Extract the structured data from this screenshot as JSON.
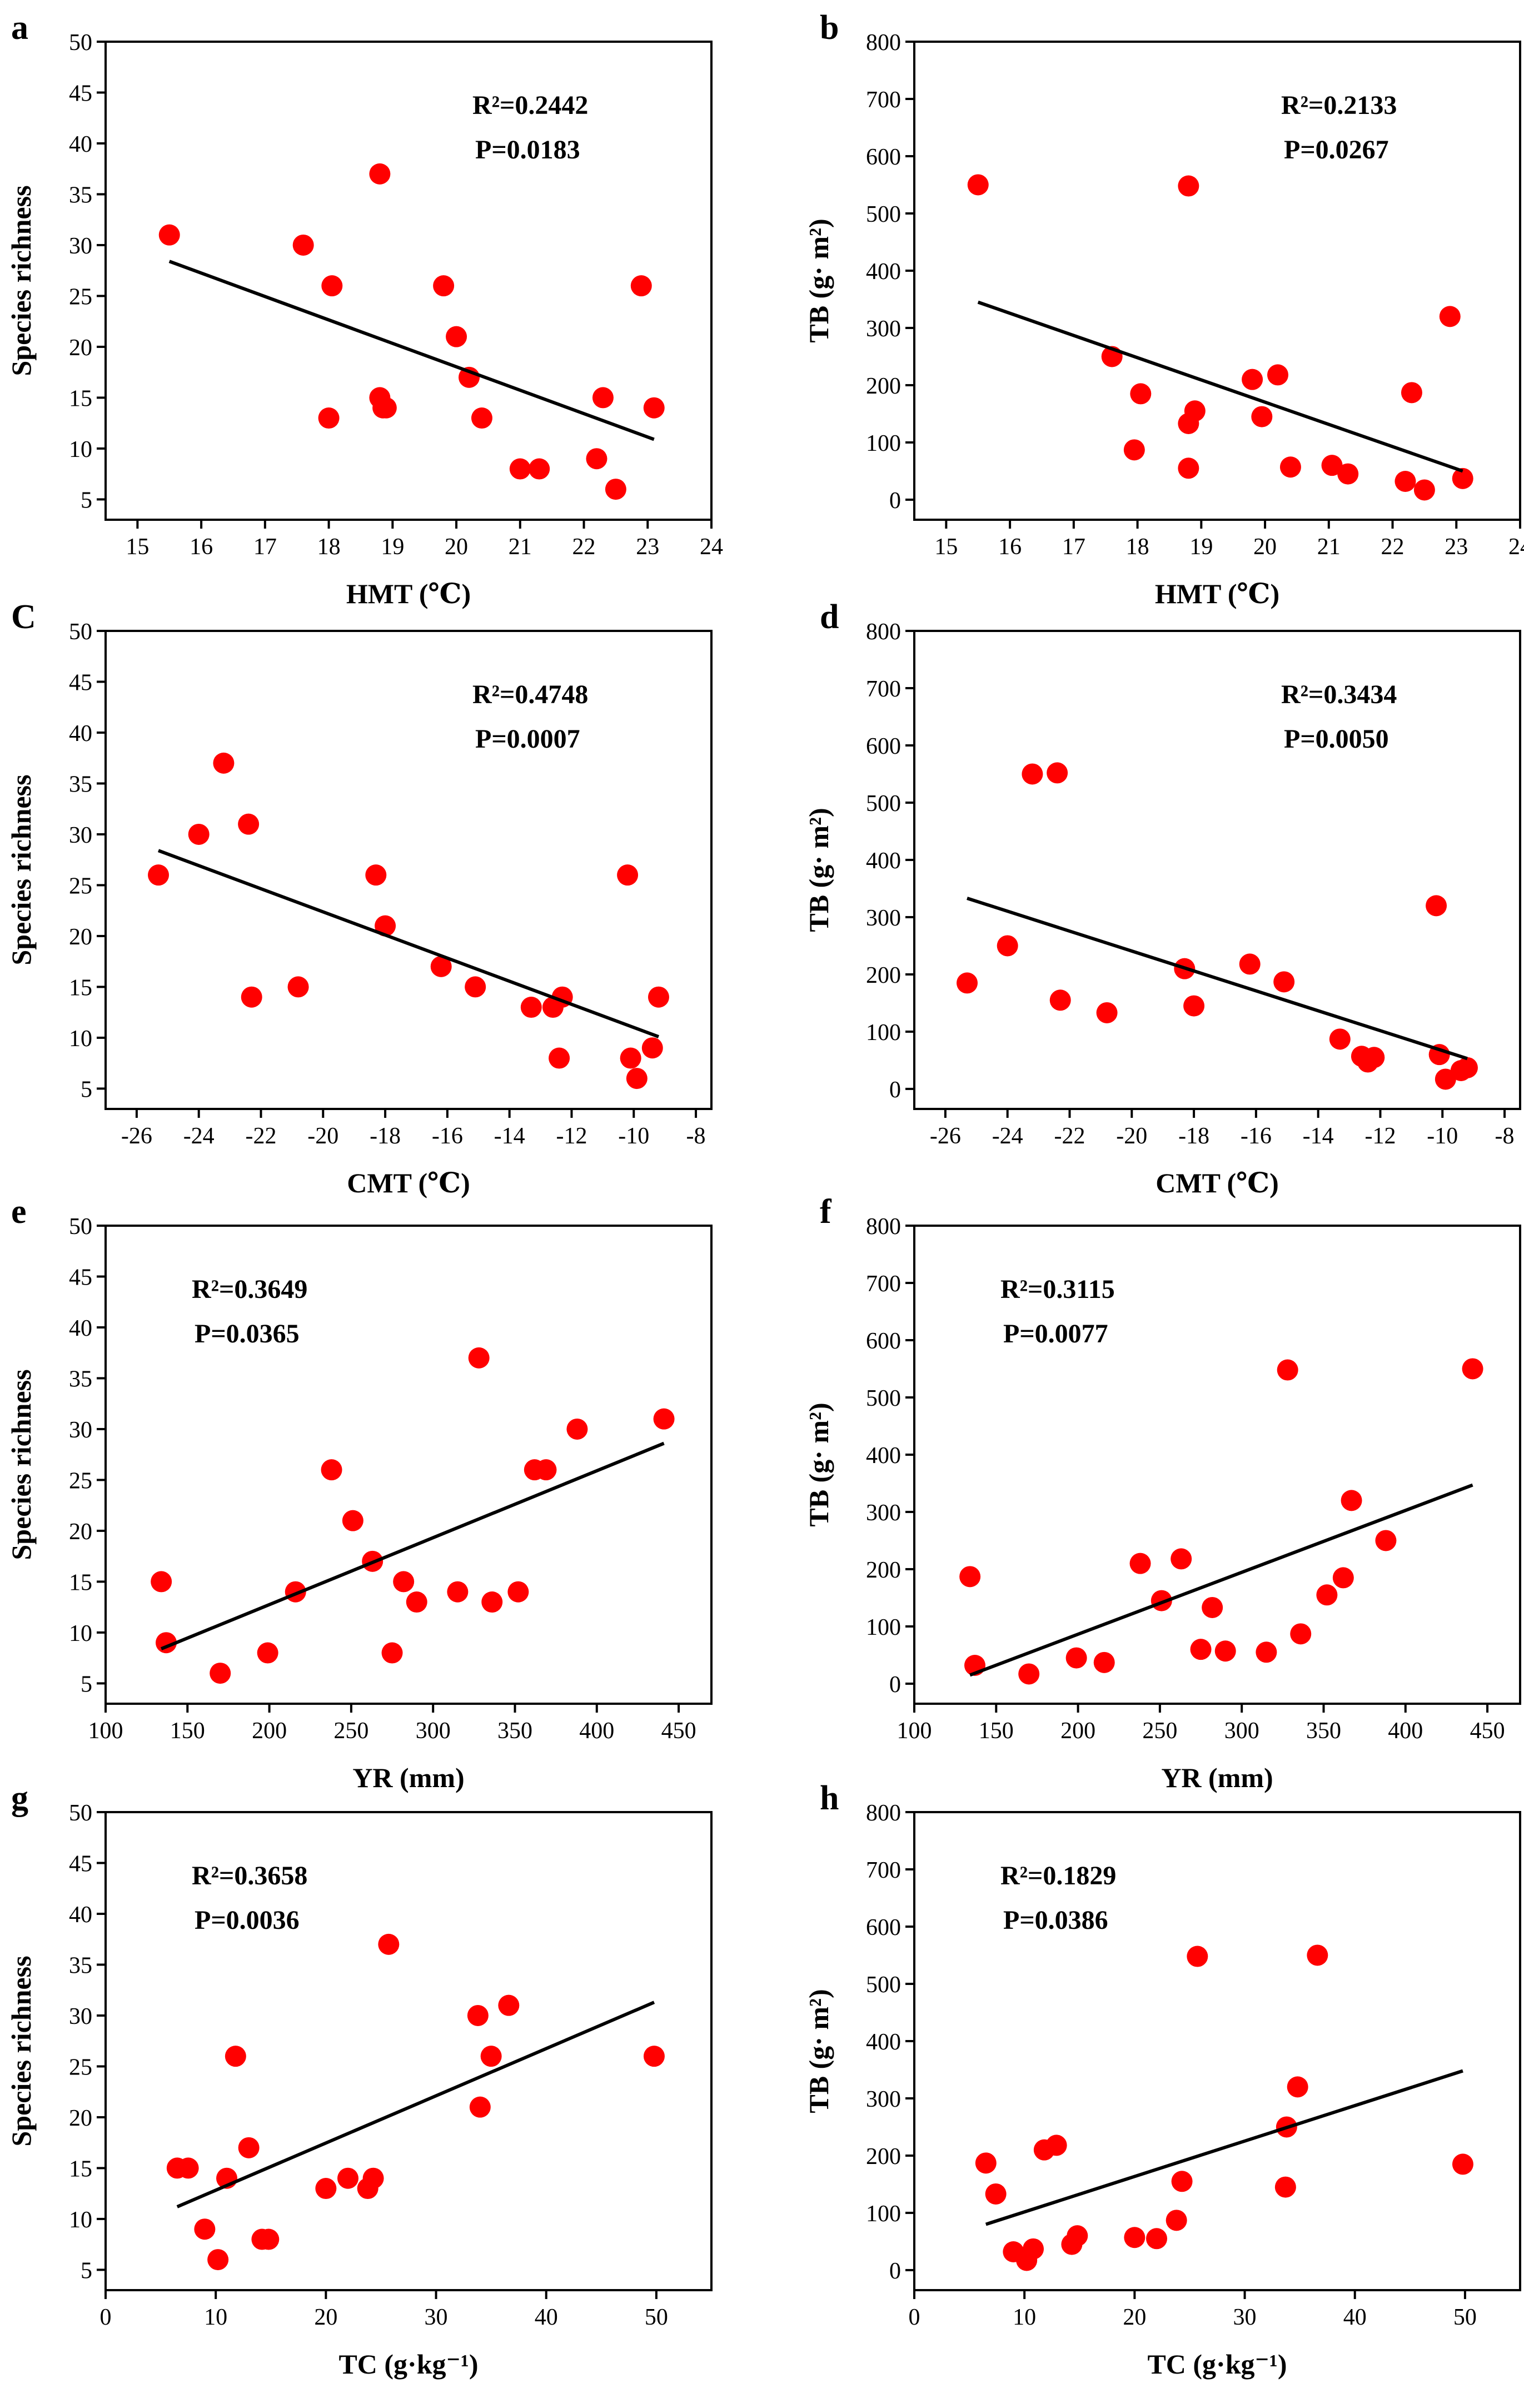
{
  "figure": {
    "point_color": "#ff0000",
    "line_color": "#000000"
  },
  "chart_data": [
    {
      "panel": "a",
      "type": "scatter",
      "xlabel": "HMT (℃)",
      "ylabel": "Species richness",
      "xlim": [
        14.5,
        24
      ],
      "ylim": [
        3,
        50
      ],
      "xticks": [
        15,
        16,
        17,
        18,
        19,
        20,
        21,
        22,
        23,
        24
      ],
      "yticks": [
        5,
        10,
        15,
        20,
        25,
        30,
        35,
        40,
        45,
        50
      ],
      "r2_label": "R²=0.2442",
      "p_label": "P=0.0183",
      "x": [
        15.5,
        17.6,
        18,
        18.05,
        18.8,
        18.8,
        18.85,
        18.9,
        19.8,
        20,
        20.2,
        20.4,
        21,
        21.3,
        22.2,
        22.3,
        22.5,
        22.9,
        23.1
      ],
      "y": [
        31,
        30,
        13,
        26,
        37,
        15,
        14,
        14,
        26,
        21,
        17,
        13,
        8,
        8,
        9,
        15,
        6,
        26,
        14
      ],
      "fit": {
        "x": [
          15.5,
          23.1
        ],
        "y": [
          28.4,
          10.9
        ]
      }
    },
    {
      "panel": "b",
      "type": "scatter",
      "xlabel": "HMT (℃)",
      "ylabel": "TB (g· m²)",
      "xlim": [
        14.5,
        24
      ],
      "ylim": [
        -35,
        800
      ],
      "xticks": [
        15,
        16,
        17,
        18,
        19,
        20,
        21,
        22,
        23,
        24
      ],
      "yticks": [
        0,
        100,
        200,
        300,
        400,
        500,
        600,
        700,
        800
      ],
      "r2_label": "R²=0.2133",
      "p_label": "P=0.0267",
      "x": [
        15.5,
        17.6,
        17.95,
        18.05,
        18.8,
        18.8,
        18.8,
        18.9,
        19.8,
        19.95,
        20.2,
        20.4,
        21.05,
        21.3,
        22.2,
        22.3,
        22.5,
        22.9,
        23.1
      ],
      "y": [
        550,
        250,
        87,
        185,
        548,
        133,
        55,
        155,
        210,
        145,
        218,
        57,
        60,
        45,
        32,
        187,
        17,
        320,
        37
      ],
      "fit": {
        "x": [
          15.5,
          23.1
        ],
        "y": [
          345,
          50
        ]
      }
    },
    {
      "panel": "C",
      "type": "scatter",
      "xlabel": "CMT (℃)",
      "ylabel": "Species richness",
      "xlim": [
        -27,
        -7.5
      ],
      "ylim": [
        3,
        50
      ],
      "xticks": [
        -26,
        -24,
        -22,
        -20,
        -18,
        -16,
        -14,
        -12,
        -10,
        -8
      ],
      "yticks": [
        5,
        10,
        15,
        20,
        25,
        30,
        35,
        40,
        45,
        50
      ],
      "r2_label": "R²=0.4748",
      "p_label": "P=0.0007",
      "x": [
        -25.3,
        -24,
        -23.2,
        -22.4,
        -22.3,
        -20.8,
        -18.3,
        -18,
        -16.2,
        -15.1,
        -13.3,
        -12.6,
        -12.4,
        -12.3,
        -10.2,
        -10.1,
        -9.9,
        -9.4,
        -9.2
      ],
      "y": [
        26,
        30,
        37,
        31,
        14,
        15,
        26,
        21,
        17,
        15,
        13,
        13,
        8,
        14,
        26,
        8,
        6,
        9,
        14
      ],
      "fit": {
        "x": [
          -25.3,
          -9.2
        ],
        "y": [
          28.4,
          10.1
        ]
      }
    },
    {
      "panel": "d",
      "type": "scatter",
      "xlabel": "CMT (℃)",
      "ylabel": "TB (g· m²)",
      "xlim": [
        -27,
        -7.5
      ],
      "ylim": [
        -35,
        800
      ],
      "xticks": [
        -26,
        -24,
        -22,
        -20,
        -18,
        -16,
        -14,
        -12,
        -10,
        -8
      ],
      "yticks": [
        0,
        100,
        200,
        300,
        400,
        500,
        600,
        700,
        800
      ],
      "r2_label": "R²=0.3434",
      "p_label": "P=0.0050",
      "x": [
        -25.3,
        -24,
        -23.2,
        -22.4,
        -22.3,
        -20.8,
        -18.3,
        -18,
        -16.2,
        -15.1,
        -13.3,
        -12.6,
        -12.4,
        -12.2,
        -10.2,
        -10.1,
        -9.9,
        -9.4,
        -9.2
      ],
      "y": [
        185,
        250,
        550,
        552,
        155,
        133,
        210,
        145,
        218,
        187,
        87,
        57,
        47,
        55,
        320,
        60,
        17,
        32,
        37
      ],
      "fit": {
        "x": [
          -25.3,
          -9.2
        ],
        "y": [
          333,
          53
        ]
      }
    },
    {
      "panel": "e",
      "type": "scatter",
      "xlabel": "YR (mm)",
      "ylabel": "Species richness",
      "xlim": [
        100,
        470
      ],
      "ylim": [
        3,
        50
      ],
      "xticks": [
        100,
        150,
        200,
        250,
        300,
        350,
        400,
        450
      ],
      "yticks": [
        5,
        10,
        15,
        20,
        25,
        30,
        35,
        40,
        45,
        50
      ],
      "r2_label": "R²=0.3649",
      "p_label": "P=0.0365",
      "x": [
        134,
        137,
        170,
        199,
        216,
        238,
        251,
        263,
        275,
        282,
        290,
        315,
        328,
        336,
        352,
        362,
        369,
        388,
        441
      ],
      "y": [
        15,
        9,
        6,
        8,
        14,
        26,
        21,
        17,
        8,
        15,
        13,
        14,
        37,
        13,
        14,
        26,
        26,
        30,
        31
      ],
      "fit": {
        "x": [
          134,
          441
        ],
        "y": [
          8.4,
          28.6
        ]
      }
    },
    {
      "panel": "f",
      "type": "scatter",
      "xlabel": "YR (mm)",
      "ylabel": "TB (g· m²)",
      "xlim": [
        100,
        470
      ],
      "ylim": [
        -35,
        800
      ],
      "xticks": [
        100,
        150,
        200,
        250,
        300,
        350,
        400,
        450
      ],
      "yticks": [
        0,
        100,
        200,
        300,
        400,
        500,
        600,
        700,
        800
      ],
      "r2_label": "R²=0.3115",
      "p_label": "P=0.0077",
      "x": [
        134,
        137,
        170,
        199,
        216,
        238,
        251,
        263,
        275,
        282,
        290,
        315,
        328,
        336,
        352,
        362,
        367,
        388,
        441
      ],
      "y": [
        187,
        32,
        17,
        45,
        37,
        210,
        145,
        218,
        60,
        133,
        57,
        55,
        548,
        87,
        155,
        185,
        320,
        250,
        550
      ],
      "fit": {
        "x": [
          134,
          441
        ],
        "y": [
          15,
          347
        ]
      }
    },
    {
      "panel": "g",
      "type": "scatter",
      "xlabel": "TC (g·kg⁻¹)",
      "ylabel": "Species richness",
      "xlim": [
        0,
        55
      ],
      "ylim": [
        3,
        50
      ],
      "xticks": [
        0,
        10,
        20,
        30,
        40,
        50
      ],
      "yticks": [
        5,
        10,
        15,
        20,
        25,
        30,
        35,
        40,
        45,
        50
      ],
      "r2_label": "R²=0.3658",
      "p_label": "P=0.0036",
      "x": [
        6.5,
        7.5,
        9,
        10.2,
        11,
        11.8,
        13,
        14.2,
        14.8,
        20,
        22,
        23.8,
        24.3,
        25.7,
        33.8,
        34,
        35,
        36.6,
        49.8
      ],
      "y": [
        15,
        15,
        9,
        6,
        14,
        26,
        17,
        8,
        8,
        13,
        14,
        13,
        14,
        37,
        30,
        21,
        26,
        31,
        26
      ],
      "fit": {
        "x": [
          6.5,
          49.8
        ],
        "y": [
          11.2,
          31.3
        ]
      }
    },
    {
      "panel": "h",
      "type": "scatter",
      "xlabel": "TC (g·kg⁻¹)",
      "ylabel": "TB (g· m²)",
      "xlim": [
        0,
        55
      ],
      "ylim": [
        -35,
        800
      ],
      "xticks": [
        0,
        10,
        20,
        30,
        40,
        50
      ],
      "yticks": [
        0,
        100,
        200,
        300,
        400,
        500,
        600,
        700,
        800
      ],
      "r2_label": "R²=0.1829",
      "p_label": "P=0.0386",
      "x": [
        6.5,
        7.4,
        9,
        10.2,
        10.8,
        11.8,
        12.9,
        14.3,
        14.8,
        20,
        22,
        23.8,
        24.3,
        25.7,
        33.8,
        33.7,
        34.8,
        36.6,
        49.8
      ],
      "y": [
        187,
        133,
        32,
        17,
        37,
        210,
        218,
        45,
        60,
        57,
        55,
        87,
        155,
        548,
        250,
        145,
        320,
        550,
        185
      ],
      "fit": {
        "x": [
          6.5,
          49.8
        ],
        "y": [
          80,
          348
        ]
      }
    }
  ]
}
